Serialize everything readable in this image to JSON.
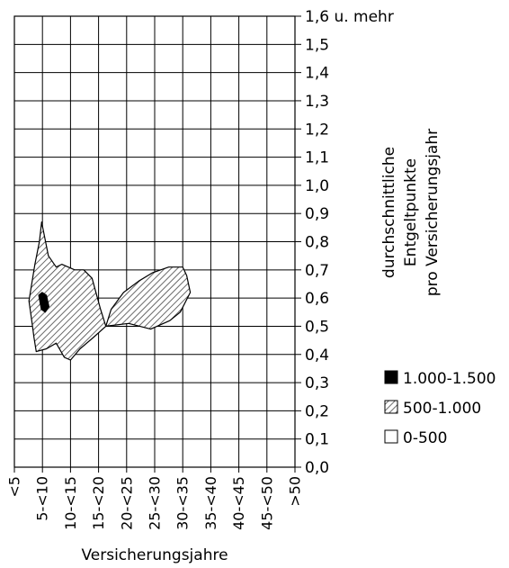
{
  "chart_data": {
    "type": "contour",
    "xlabel": "Versicherungsjahre",
    "ylabel": [
      "durchschnittliche",
      "Entgeltpunkte",
      "pro Versicherungsjahr"
    ],
    "x_categories": [
      "<5",
      "5-<10",
      "10-<15",
      "15-<20",
      "20-<25",
      "25-<30",
      "30-<35",
      "35-<40",
      "40-<45",
      "45-<50",
      ">50"
    ],
    "y_ticks": [
      "0,0",
      "0,1",
      "0,2",
      "0,3",
      "0,4",
      "0,5",
      "0,6",
      "0,7",
      "0,8",
      "0,9",
      "1,0",
      "1,1",
      "1,2",
      "1,3",
      "1,4",
      "1,5",
      "1,6 u. mehr"
    ],
    "ylim": [
      0,
      1.6
    ],
    "xlim": [
      0,
      10
    ],
    "grid": true,
    "legend_position": "right",
    "legend": [
      {
        "label": "1.000-1.500",
        "fill": "black"
      },
      {
        "label": "500-1.000",
        "fill": "hatch"
      },
      {
        "label": "0-500",
        "fill": "white"
      }
    ],
    "regions": [
      {
        "level": "500-1.000",
        "points": [
          [
            0.97,
            0.87
          ],
          [
            0.89,
            0.8
          ],
          [
            0.73,
            0.72
          ],
          [
            0.52,
            0.59
          ],
          [
            0.62,
            0.52
          ],
          [
            0.7,
            0.46
          ],
          [
            0.78,
            0.41
          ],
          [
            1.14,
            0.42
          ],
          [
            1.49,
            0.44
          ],
          [
            1.78,
            0.39
          ],
          [
            2.0,
            0.38
          ],
          [
            2.34,
            0.42
          ],
          [
            2.81,
            0.46
          ],
          [
            3.26,
            0.5
          ],
          [
            3.07,
            0.56
          ],
          [
            2.77,
            0.67
          ],
          [
            2.47,
            0.7
          ],
          [
            2.15,
            0.7
          ],
          [
            1.69,
            0.72
          ],
          [
            1.49,
            0.71
          ],
          [
            1.21,
            0.75
          ],
          [
            0.97,
            0.87
          ]
        ]
      },
      {
        "level": "500-1.000",
        "points": [
          [
            3.26,
            0.5
          ],
          [
            3.45,
            0.56
          ],
          [
            3.89,
            0.62
          ],
          [
            4.43,
            0.66
          ],
          [
            4.93,
            0.69
          ],
          [
            5.5,
            0.71
          ],
          [
            6.0,
            0.71
          ],
          [
            6.14,
            0.68
          ],
          [
            6.27,
            0.62
          ],
          [
            5.91,
            0.55
          ],
          [
            5.54,
            0.52
          ],
          [
            4.86,
            0.49
          ],
          [
            4.07,
            0.51
          ],
          [
            3.26,
            0.5
          ]
        ]
      },
      {
        "level": "1.000-1.500",
        "points": [
          [
            0.87,
            0.61
          ],
          [
            0.99,
            0.62
          ],
          [
            1.14,
            0.61
          ],
          [
            1.23,
            0.57
          ],
          [
            1.1,
            0.55
          ],
          [
            0.96,
            0.56
          ],
          [
            0.87,
            0.61
          ]
        ]
      }
    ]
  }
}
